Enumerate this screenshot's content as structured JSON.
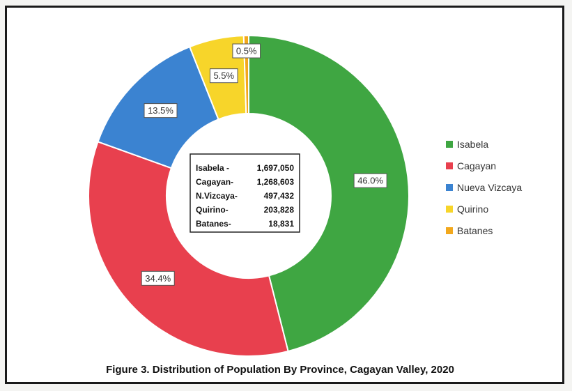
{
  "chart_data": {
    "type": "pie",
    "title": "",
    "caption": "Figure 3. Distribution of Population By Province, Cagayan Valley, 2020",
    "categories": [
      "Isabela",
      "Cagayan",
      "Nueva Vizcaya",
      "Quirino",
      "Batanes"
    ],
    "values": [
      46.0,
      34.4,
      13.5,
      5.5,
      0.5
    ],
    "value_labels": [
      "46.0%",
      "34.4%",
      "13.5%",
      "5.5%",
      "0.5%"
    ],
    "colors": [
      "#3fa642",
      "#e8404e",
      "#3b83d1",
      "#f7d52a",
      "#f2a81d"
    ],
    "donut": true,
    "legend_position": "right",
    "center_annotation": [
      {
        "name": "Isabela -",
        "value": "1,697,050"
      },
      {
        "name": "Cagayan-",
        "value": "1,268,603"
      },
      {
        "name": "N.Vizcaya-",
        "value": "497,432"
      },
      {
        "name": "Quirino-",
        "value": "203,828"
      },
      {
        "name": "Batanes-",
        "value": "18,831"
      }
    ]
  }
}
